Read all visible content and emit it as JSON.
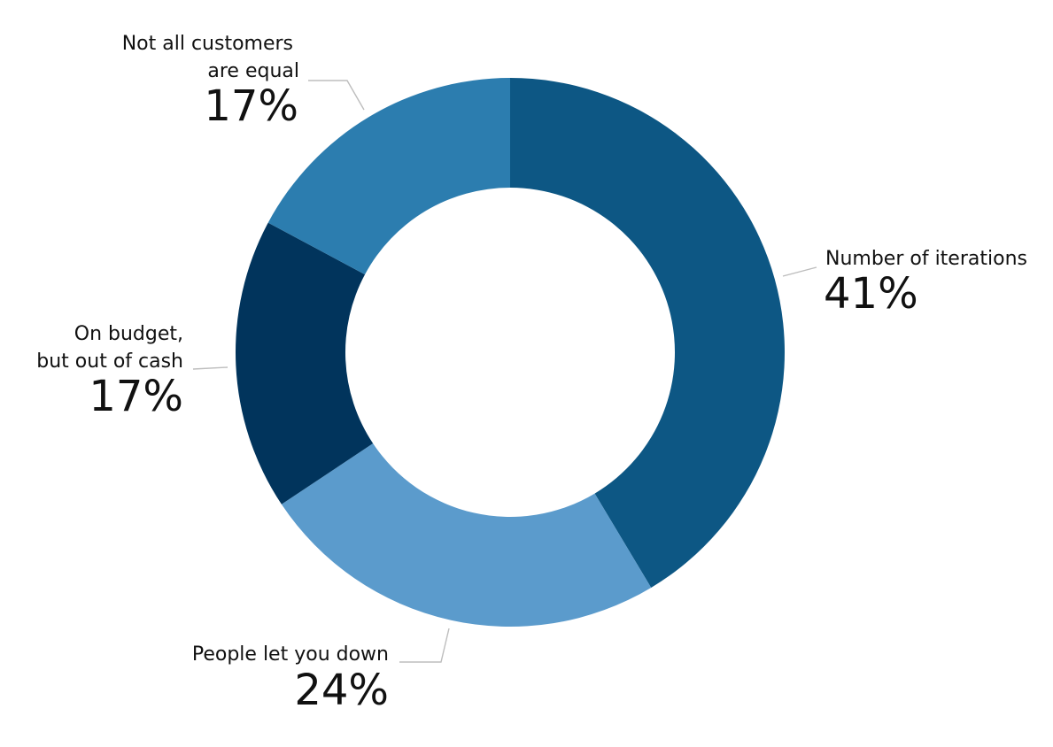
{
  "chart_data": {
    "type": "pie",
    "variant": "donut",
    "title": "",
    "slices": [
      {
        "label_lines": [
          "Number of iterations"
        ],
        "value": 41,
        "value_label": "41%",
        "color": "#0d5784"
      },
      {
        "label_lines": [
          "People let you down"
        ],
        "value": 24,
        "value_label": "24%",
        "color": "#5b9bcc"
      },
      {
        "label_lines": [
          "On budget,",
          "but out of cash"
        ],
        "value": 17,
        "value_label": "17%",
        "color": "#01345c"
      },
      {
        "label_lines": [
          "Not all customers",
          "are equal"
        ],
        "value": 17,
        "value_label": "17%",
        "color": "#2c7daf"
      }
    ],
    "start_angle": "12 o'clock",
    "direction": "clockwise",
    "legend": "none (direct labels)"
  }
}
